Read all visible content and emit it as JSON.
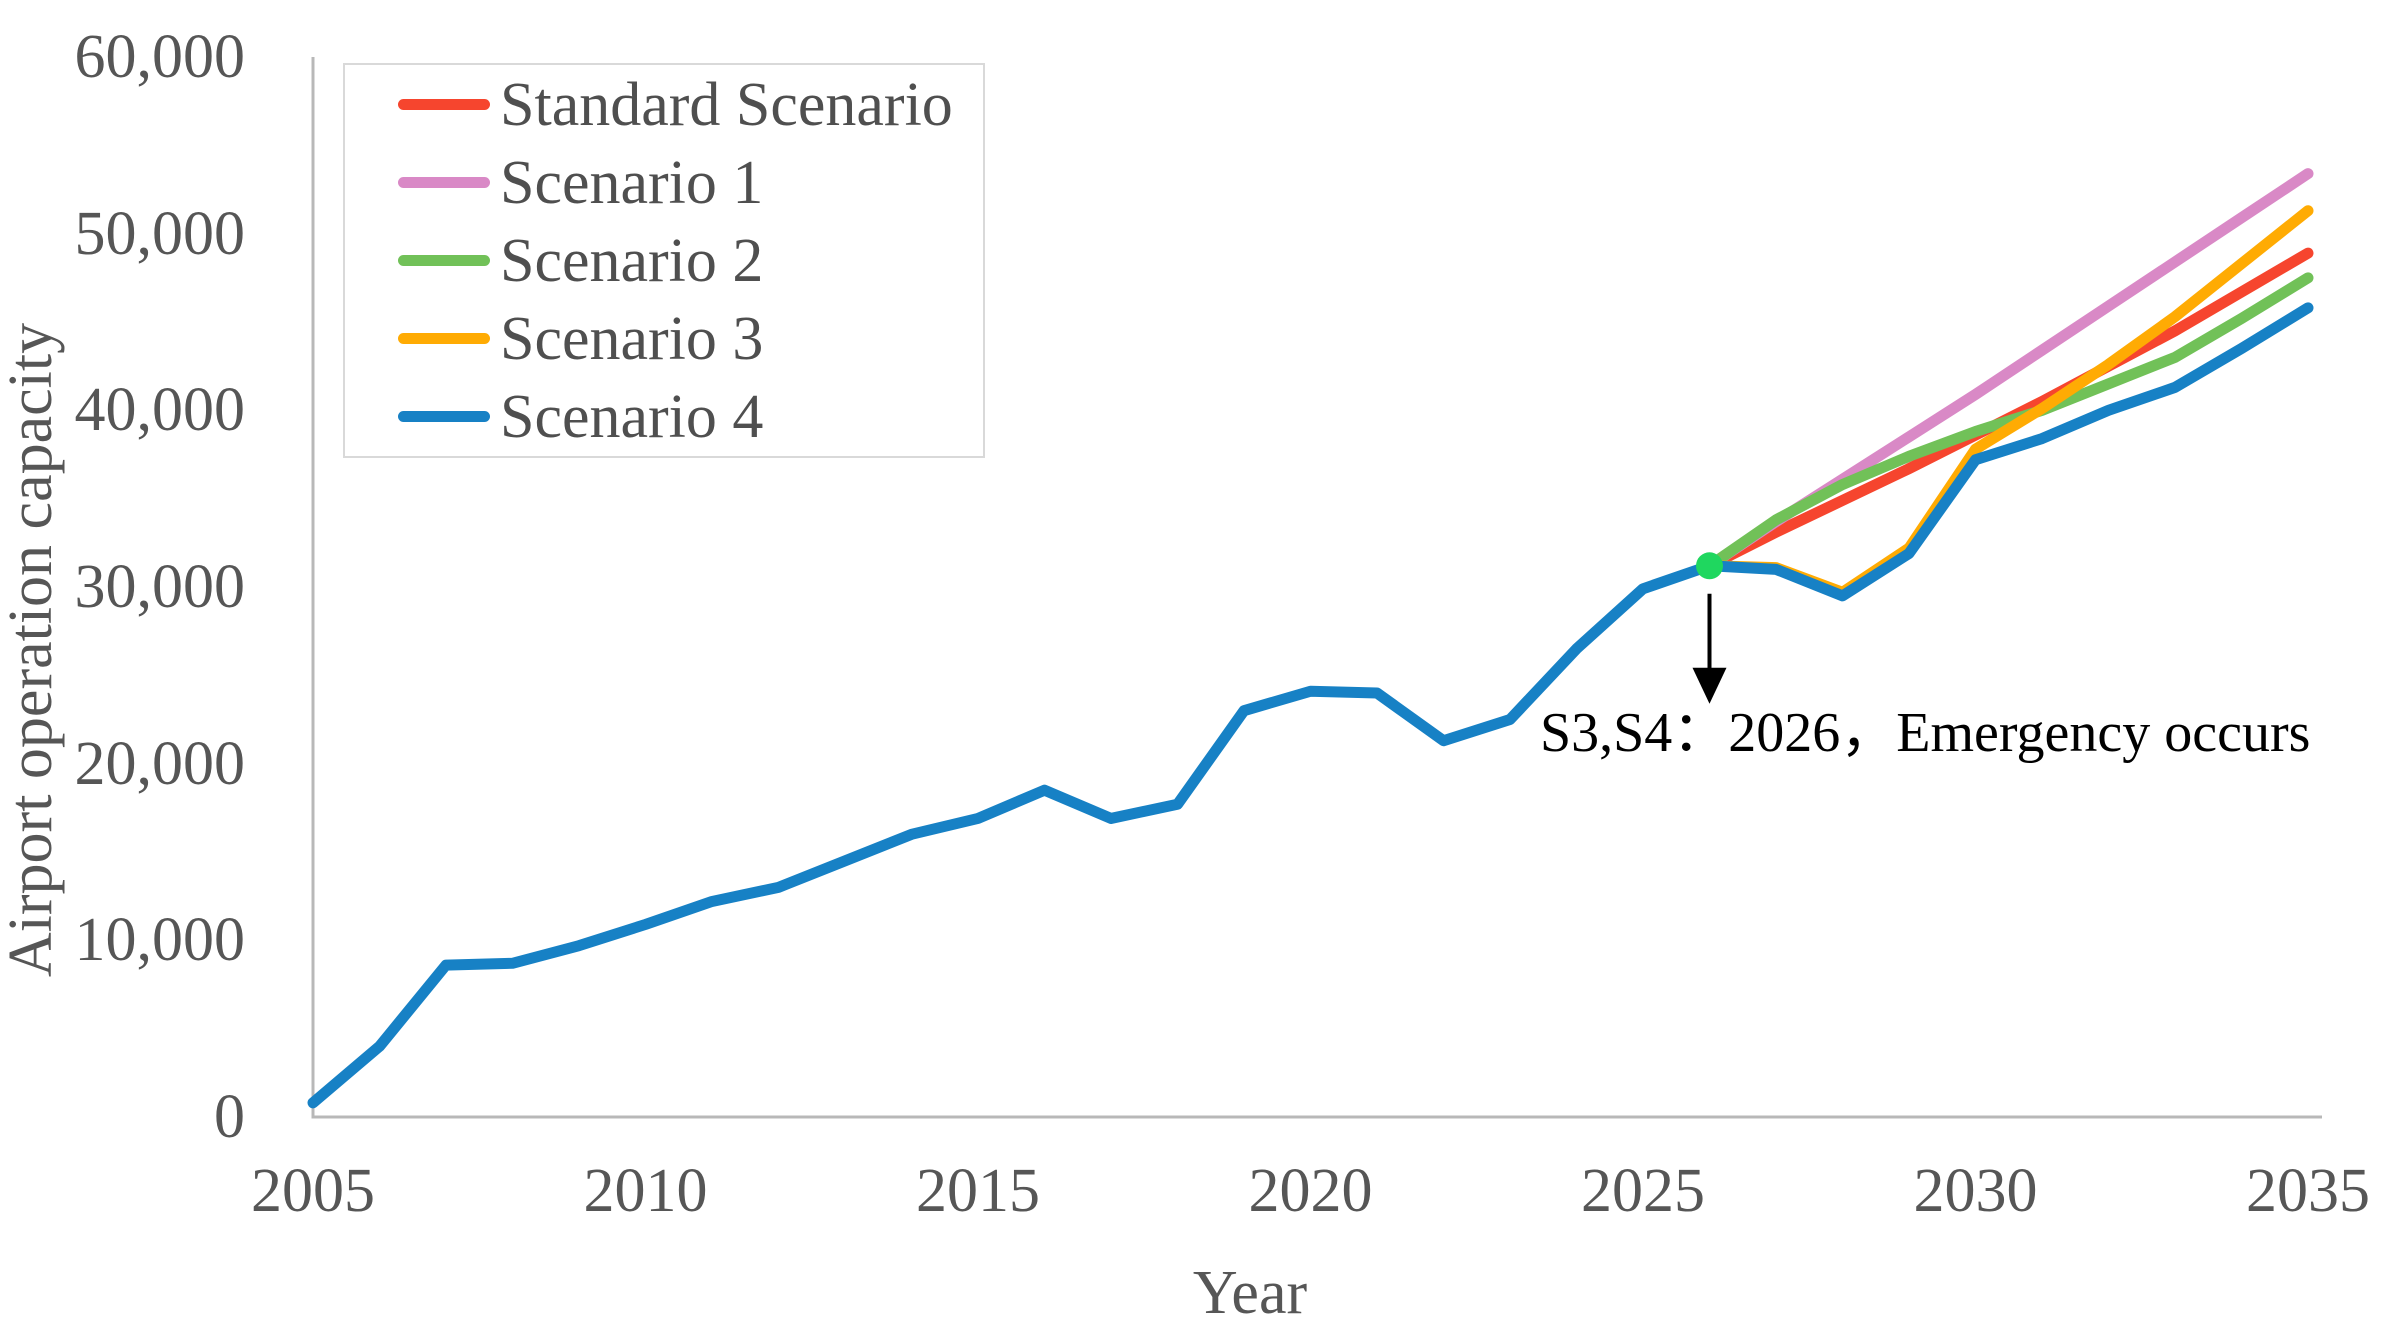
{
  "chart_data": {
    "type": "line",
    "title": "",
    "xlabel": "Year",
    "ylabel": "Airport operation capacity",
    "xlim": [
      2005,
      2035
    ],
    "ylim": [
      0,
      60000
    ],
    "grid": false,
    "legend_position": "upper-left",
    "axis_color": "#b8b8b8",
    "tick_text_color": "#565656",
    "x_tick_values": [
      2005,
      2010,
      2015,
      2020,
      2025,
      2030,
      2035
    ],
    "x_tick_labels": [
      "2005",
      "2010",
      "2015",
      "2020",
      "2025",
      "2030",
      "2035"
    ],
    "y_tick_values": [
      0,
      10000,
      20000,
      30000,
      40000,
      50000,
      60000
    ],
    "y_tick_labels": [
      "0",
      "10,000",
      "20,000",
      "30,000",
      "40,000",
      "50,000",
      "60,000"
    ],
    "series": [
      {
        "name": "Standard Scenario",
        "color": "#f6452e",
        "x": [
          2026,
          2027,
          2028,
          2029,
          2030,
          2031,
          2032,
          2033,
          2034,
          2035
        ],
        "y": [
          31200,
          33100,
          34900,
          36700,
          38600,
          40500,
          42500,
          44500,
          46700,
          48900
        ]
      },
      {
        "name": "Scenario 1",
        "color": "#d989c6",
        "x": [
          2026,
          2027,
          2028,
          2029,
          2030,
          2031,
          2032,
          2033,
          2034,
          2035
        ],
        "y": [
          31200,
          33700,
          36100,
          38500,
          40900,
          43400,
          45900,
          48400,
          50900,
          53400
        ]
      },
      {
        "name": "Scenario 2",
        "color": "#71c158",
        "x": [
          2026,
          2027,
          2028,
          2029,
          2030,
          2031,
          2032,
          2033,
          2034,
          2035
        ],
        "y": [
          31200,
          33800,
          35800,
          37400,
          38800,
          40000,
          41500,
          43000,
          45200,
          47500
        ]
      },
      {
        "name": "Scenario 3",
        "color": "#ffab03",
        "x": [
          2026,
          2027,
          2028,
          2029,
          2030,
          2031,
          2032,
          2033,
          2034,
          2035
        ],
        "y": [
          31200,
          31100,
          29700,
          32200,
          37800,
          40100,
          42600,
          45300,
          48300,
          51300
        ]
      },
      {
        "name": "Scenario 4",
        "color": "#1781c5",
        "x": [
          2005,
          2006,
          2007,
          2008,
          2009,
          2010,
          2011,
          2012,
          2013,
          2014,
          2015,
          2016,
          2017,
          2018,
          2019,
          2020,
          2021,
          2022,
          2023,
          2024,
          2025,
          2026,
          2027,
          2028,
          2029,
          2030,
          2031,
          2032,
          2033,
          2034,
          2035
        ],
        "y": [
          800,
          4000,
          8600,
          8700,
          9700,
          10900,
          12200,
          13000,
          14500,
          16000,
          16900,
          18500,
          16900,
          17700,
          23000,
          24100,
          24000,
          21300,
          22500,
          26500,
          29900,
          31200,
          31000,
          29500,
          31900,
          37200,
          38400,
          40000,
          41300,
          43500,
          45800
        ]
      }
    ],
    "annotation": {
      "text": "S3,S4：2026，Emergency occurs",
      "arrow_color": "#000000",
      "marker": {
        "x": 2026,
        "y": 31200,
        "color": "#1fd75f"
      }
    }
  }
}
